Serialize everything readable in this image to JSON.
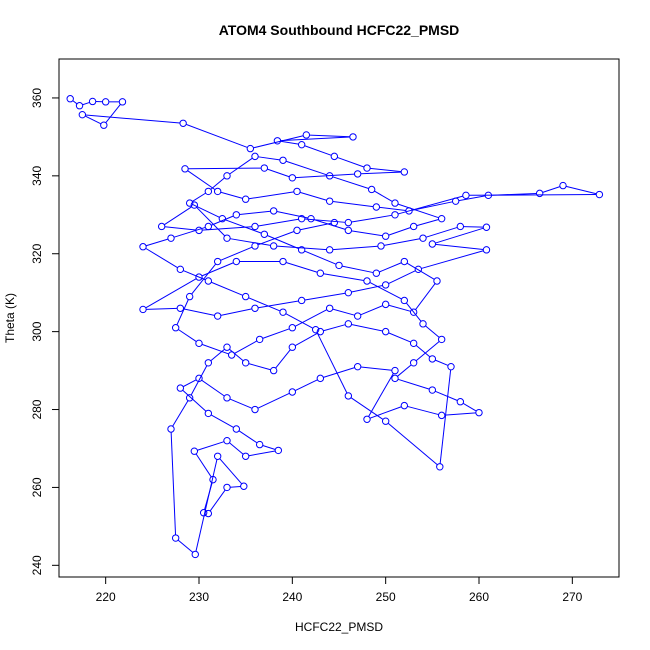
{
  "chart_data": {
    "type": "line",
    "title": "ATOM4 Southbound HCFC22_PMSD",
    "xlabel": "HCFC22_PMSD",
    "ylabel": "Theta (K)",
    "xlim": [
      215,
      275
    ],
    "ylim": [
      237,
      370
    ],
    "x_ticks": [
      220,
      230,
      240,
      250,
      260,
      270
    ],
    "y_ticks": [
      240,
      260,
      280,
      300,
      320,
      340,
      360
    ],
    "grid": false,
    "legend": "none",
    "series_color": "#0000ff",
    "marker": "open-circle",
    "series": [
      {
        "values": [
          [
            216.2,
            359.8
          ],
          [
            217.2,
            358.0
          ],
          [
            218.6,
            359.1
          ],
          [
            220.0,
            359.0
          ],
          [
            221.8,
            359.0
          ],
          [
            219.8,
            353.0
          ],
          [
            217.5,
            355.7
          ],
          [
            228.3,
            353.5
          ],
          [
            235.5,
            347.0
          ],
          [
            241.5,
            350.5
          ],
          [
            246.5,
            350.0
          ],
          [
            238.4,
            349.0
          ],
          [
            241.0,
            348.0
          ],
          [
            244.5,
            345.0
          ],
          [
            248.0,
            342.0
          ],
          [
            252.0,
            341.0
          ],
          [
            247.0,
            340.5
          ],
          [
            240.0,
            339.5
          ],
          [
            237.0,
            342.0
          ],
          [
            228.5,
            341.8
          ],
          [
            232.0,
            336.0
          ],
          [
            235.0,
            334.0
          ],
          [
            240.5,
            336.0
          ],
          [
            244.0,
            333.5
          ],
          [
            249.0,
            332.0
          ],
          [
            252.5,
            331.0
          ],
          [
            257.5,
            333.5
          ],
          [
            261.0,
            335.0
          ],
          [
            266.5,
            335.5
          ],
          [
            269.0,
            337.5
          ],
          [
            272.9,
            335.2
          ],
          [
            258.6,
            335.0
          ],
          [
            251.0,
            330.0
          ],
          [
            246.0,
            328.0
          ],
          [
            241.0,
            329.0
          ],
          [
            236.0,
            327.0
          ],
          [
            230.0,
            326.0
          ],
          [
            226.0,
            327.0
          ],
          [
            229.5,
            332.5
          ],
          [
            233.0,
            324.0
          ],
          [
            238.0,
            322.0
          ],
          [
            244.0,
            321.0
          ],
          [
            249.5,
            322.0
          ],
          [
            254.0,
            324.0
          ],
          [
            258.0,
            327.0
          ],
          [
            260.8,
            326.8
          ],
          [
            255.0,
            322.5
          ],
          [
            260.8,
            321.0
          ],
          [
            253.5,
            316.0
          ],
          [
            250.0,
            312.0
          ],
          [
            246.0,
            310.0
          ],
          [
            241.0,
            308.0
          ],
          [
            236.0,
            306.0
          ],
          [
            232.0,
            304.0
          ],
          [
            228.0,
            306.0
          ],
          [
            224.0,
            305.7
          ],
          [
            230.0,
            314.0
          ],
          [
            234.0,
            318.0
          ],
          [
            239.0,
            318.0
          ],
          [
            243.0,
            315.0
          ],
          [
            248.0,
            313.0
          ],
          [
            252.0,
            308.0
          ],
          [
            254.0,
            302.0
          ],
          [
            256.0,
            298.0
          ],
          [
            253.0,
            292.0
          ],
          [
            251.0,
            288.0
          ],
          [
            255.0,
            285.0
          ],
          [
            258.0,
            282.0
          ],
          [
            260.0,
            279.2
          ],
          [
            256.0,
            278.5
          ],
          [
            252.0,
            281.0
          ],
          [
            248.0,
            277.5
          ],
          [
            251.0,
            290.0
          ],
          [
            247.0,
            291.0
          ],
          [
            243.0,
            288.0
          ],
          [
            240.0,
            284.5
          ],
          [
            236.0,
            280.0
          ],
          [
            233.0,
            283.0
          ],
          [
            230.0,
            288.0
          ],
          [
            228.0,
            285.5
          ],
          [
            231.0,
            279.0
          ],
          [
            234.0,
            275.0
          ],
          [
            236.5,
            271.0
          ],
          [
            238.5,
            269.5
          ],
          [
            235.0,
            268.0
          ],
          [
            233.0,
            272.0
          ],
          [
            229.5,
            269.3
          ],
          [
            231.5,
            262.0
          ],
          [
            230.5,
            253.5
          ],
          [
            231.0,
            253.3
          ],
          [
            233.0,
            260.0
          ],
          [
            234.8,
            260.3
          ],
          [
            232.0,
            268.0
          ],
          [
            229.6,
            242.8
          ],
          [
            227.5,
            247.0
          ],
          [
            227.0,
            275.0
          ],
          [
            229.0,
            283.0
          ],
          [
            231.0,
            292.0
          ],
          [
            233.0,
            296.0
          ],
          [
            235.0,
            292.0
          ],
          [
            238.0,
            290.0
          ],
          [
            240.0,
            296.0
          ],
          [
            243.0,
            300.0
          ],
          [
            246.0,
            302.0
          ],
          [
            250.0,
            300.0
          ],
          [
            253.0,
            297.0
          ],
          [
            255.0,
            293.0
          ],
          [
            257.0,
            291.0
          ],
          [
            255.8,
            265.3
          ],
          [
            250.0,
            277.0
          ],
          [
            246.0,
            283.5
          ],
          [
            242.5,
            300.5
          ],
          [
            239.0,
            305.0
          ],
          [
            235.0,
            309.0
          ],
          [
            231.0,
            313.0
          ],
          [
            228.0,
            316.0
          ],
          [
            224.0,
            321.8
          ],
          [
            227.0,
            324.0
          ],
          [
            231.0,
            327.0
          ],
          [
            234.0,
            330.0
          ],
          [
            238.0,
            331.0
          ],
          [
            242.0,
            329.0
          ],
          [
            246.0,
            326.0
          ],
          [
            250.0,
            324.5
          ],
          [
            253.0,
            327.0
          ],
          [
            256.0,
            329.0
          ],
          [
            251.0,
            333.0
          ],
          [
            248.5,
            336.5
          ],
          [
            244.0,
            340.0
          ],
          [
            239.0,
            344.0
          ],
          [
            236.0,
            345.0
          ],
          [
            233.0,
            340.0
          ],
          [
            231.0,
            336.0
          ],
          [
            229.0,
            333.0
          ],
          [
            232.5,
            329.0
          ],
          [
            237.0,
            325.0
          ],
          [
            241.0,
            321.0
          ],
          [
            245.0,
            317.0
          ],
          [
            249.0,
            315.0
          ],
          [
            252.0,
            318.0
          ],
          [
            255.5,
            313.0
          ],
          [
            253.0,
            305.0
          ],
          [
            250.0,
            307.0
          ],
          [
            247.0,
            304.0
          ],
          [
            244.0,
            306.0
          ],
          [
            240.0,
            301.0
          ],
          [
            236.5,
            298.0
          ],
          [
            233.5,
            294.0
          ],
          [
            230.0,
            297.0
          ],
          [
            227.5,
            301.0
          ],
          [
            229.0,
            309.0
          ],
          [
            232.0,
            318.0
          ],
          [
            236.0,
            322.0
          ],
          [
            240.5,
            326.0
          ],
          [
            244.5,
            328.0
          ]
        ]
      }
    ]
  }
}
